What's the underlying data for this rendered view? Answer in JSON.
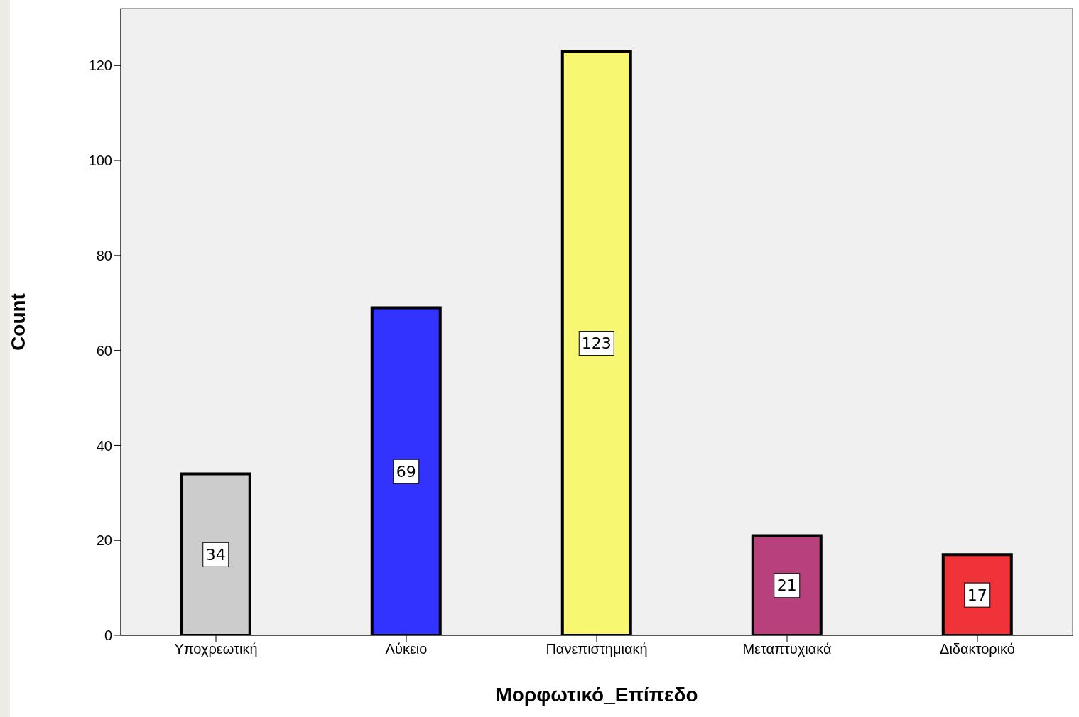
{
  "chart_data": {
    "type": "bar",
    "xlabel": "Μορφωτικό_Επίπεδο",
    "ylabel": "Count",
    "categories": [
      "Υποχρεωτική",
      "Λύκειο",
      "Πανεπιστημιακή",
      "Μεταπτυχιακά",
      "Διδακτορικό"
    ],
    "values": [
      34,
      69,
      123,
      21,
      17
    ],
    "colors": [
      "#cccccc",
      "#3333ff",
      "#f8f771",
      "#b8407c",
      "#ef3338"
    ],
    "ylim": [
      0,
      132
    ],
    "yticks": [
      0,
      20,
      40,
      60,
      80,
      100,
      120
    ],
    "grid": false,
    "data_labels": true
  }
}
